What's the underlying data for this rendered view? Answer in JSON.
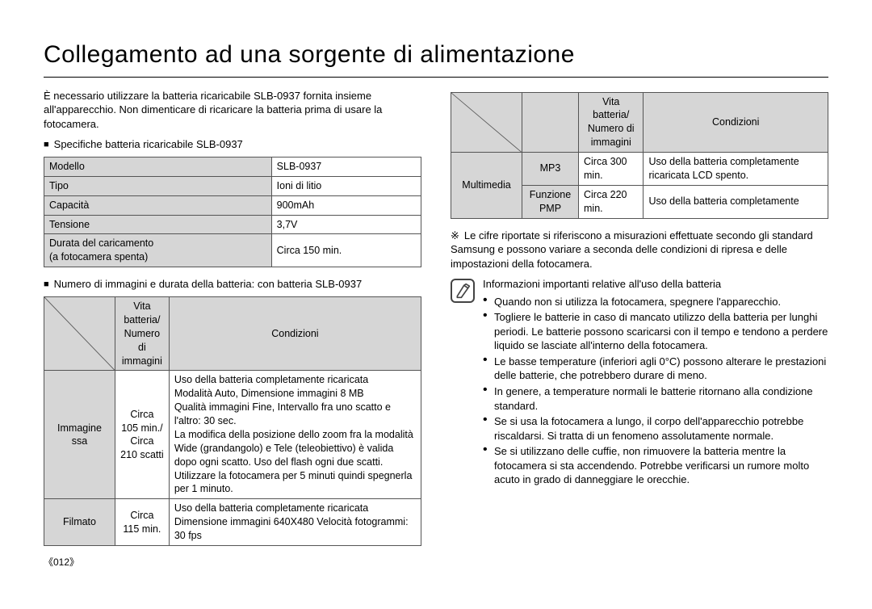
{
  "title": "Collegamento ad una sorgente di alimentazione",
  "intro": "È necessario utilizzare la batteria ricaricabile SLB-0937 fornita insieme all'apparecchio. Non dimenticare di ricaricare la batteria prima di usare la fotocamera.",
  "spec_heading": "Specifiche batteria ricaricabile SLB-0937",
  "spec_table": {
    "rows": [
      [
        "Modello",
        "SLB-0937"
      ],
      [
        "Tipo",
        "Ioni di litio"
      ],
      [
        "Capacità",
        "900mAh"
      ],
      [
        "Tensione",
        "3,7V"
      ],
      [
        "Durata del caricamento\n(a fotocamera spenta)",
        "Circa 150 min."
      ]
    ],
    "col1_bg": "#d6d6d6"
  },
  "usage_heading": "Numero di immagini e durata della batteria: con batteria SLB-0937",
  "usage_table": {
    "header_vb": "Vita batteria/\nNumero di\nimmagini",
    "header_cond": "Condizioni",
    "rows": [
      {
        "cat": "Immagine\nssa",
        "val": "Circa\n105 min./\nCirca\n210 scatti",
        "cond": "Uso della batteria completamente ricaricata\nModalità Auto, Dimensione immagini 8 MB\nQualità immagini Fine, Intervallo fra uno scatto e l'altro: 30 sec.\nLa modifica della posizione dello zoom fra la modalità Wide (grandangolo) e Tele (teleobiettivo) è valida dopo ogni scatto. Uso del flash ogni due scatti. Utilizzare la fotocamera per 5 minuti quindi spegnerla per 1 minuto."
      },
      {
        "cat": "Filmato",
        "val": "Circa\n115 min.",
        "cond": "Uso della batteria completamente ricaricata\nDimensione immagini 640X480 Velocità fotogrammi: 30 fps"
      }
    ]
  },
  "mm_table": {
    "header_vb": "Vita batteria/\nNumero di\nimmagini",
    "header_cond": "Condizioni",
    "group": "Multimedia",
    "rows": [
      {
        "sub": "MP3",
        "val": "Circa 300 min.",
        "cond": "Uso della batteria completamente ricaricata LCD spento."
      },
      {
        "sub": "Funzione\nPMP",
        "val": "Circa 220 min.",
        "cond": "Uso della batteria completamente"
      }
    ]
  },
  "footnote": "Le cifre riportate si riferiscono a misurazioni effettuate secondo gli standard Samsung e possono variare a seconda delle condizioni di ripresa e delle impostazioni della fotocamera.",
  "note_heading": "Informazioni importanti relative all'uso della batteria",
  "note_items": [
    "Quando non si utilizza la fotocamera, spegnere l'apparecchio.",
    "Togliere le batterie in caso di mancato utilizzo della batteria per lunghi periodi. Le batterie possono scaricarsi con il tempo e tendono a perdere liquido se lasciate all'interno della fotocamera.",
    "Le basse temperature (inferiori agli 0°C) possono alterare le prestazioni delle batterie, che potrebbero durare di meno.",
    "In genere, a temperature normali le batterie ritornano alla condizione standard.",
    "Se si usa la fotocamera a lungo, il corpo dell'apparecchio potrebbe riscaldarsi. Si tratta di un fenomeno assolutamente normale.",
    "Se si utilizzano delle cuffie, non rimuovere la batteria mentre la fotocamera si sta accendendo. Potrebbe verificarsi un rumore molto acuto in grado di danneggiare le orecchie."
  ],
  "page_number": "《012》"
}
